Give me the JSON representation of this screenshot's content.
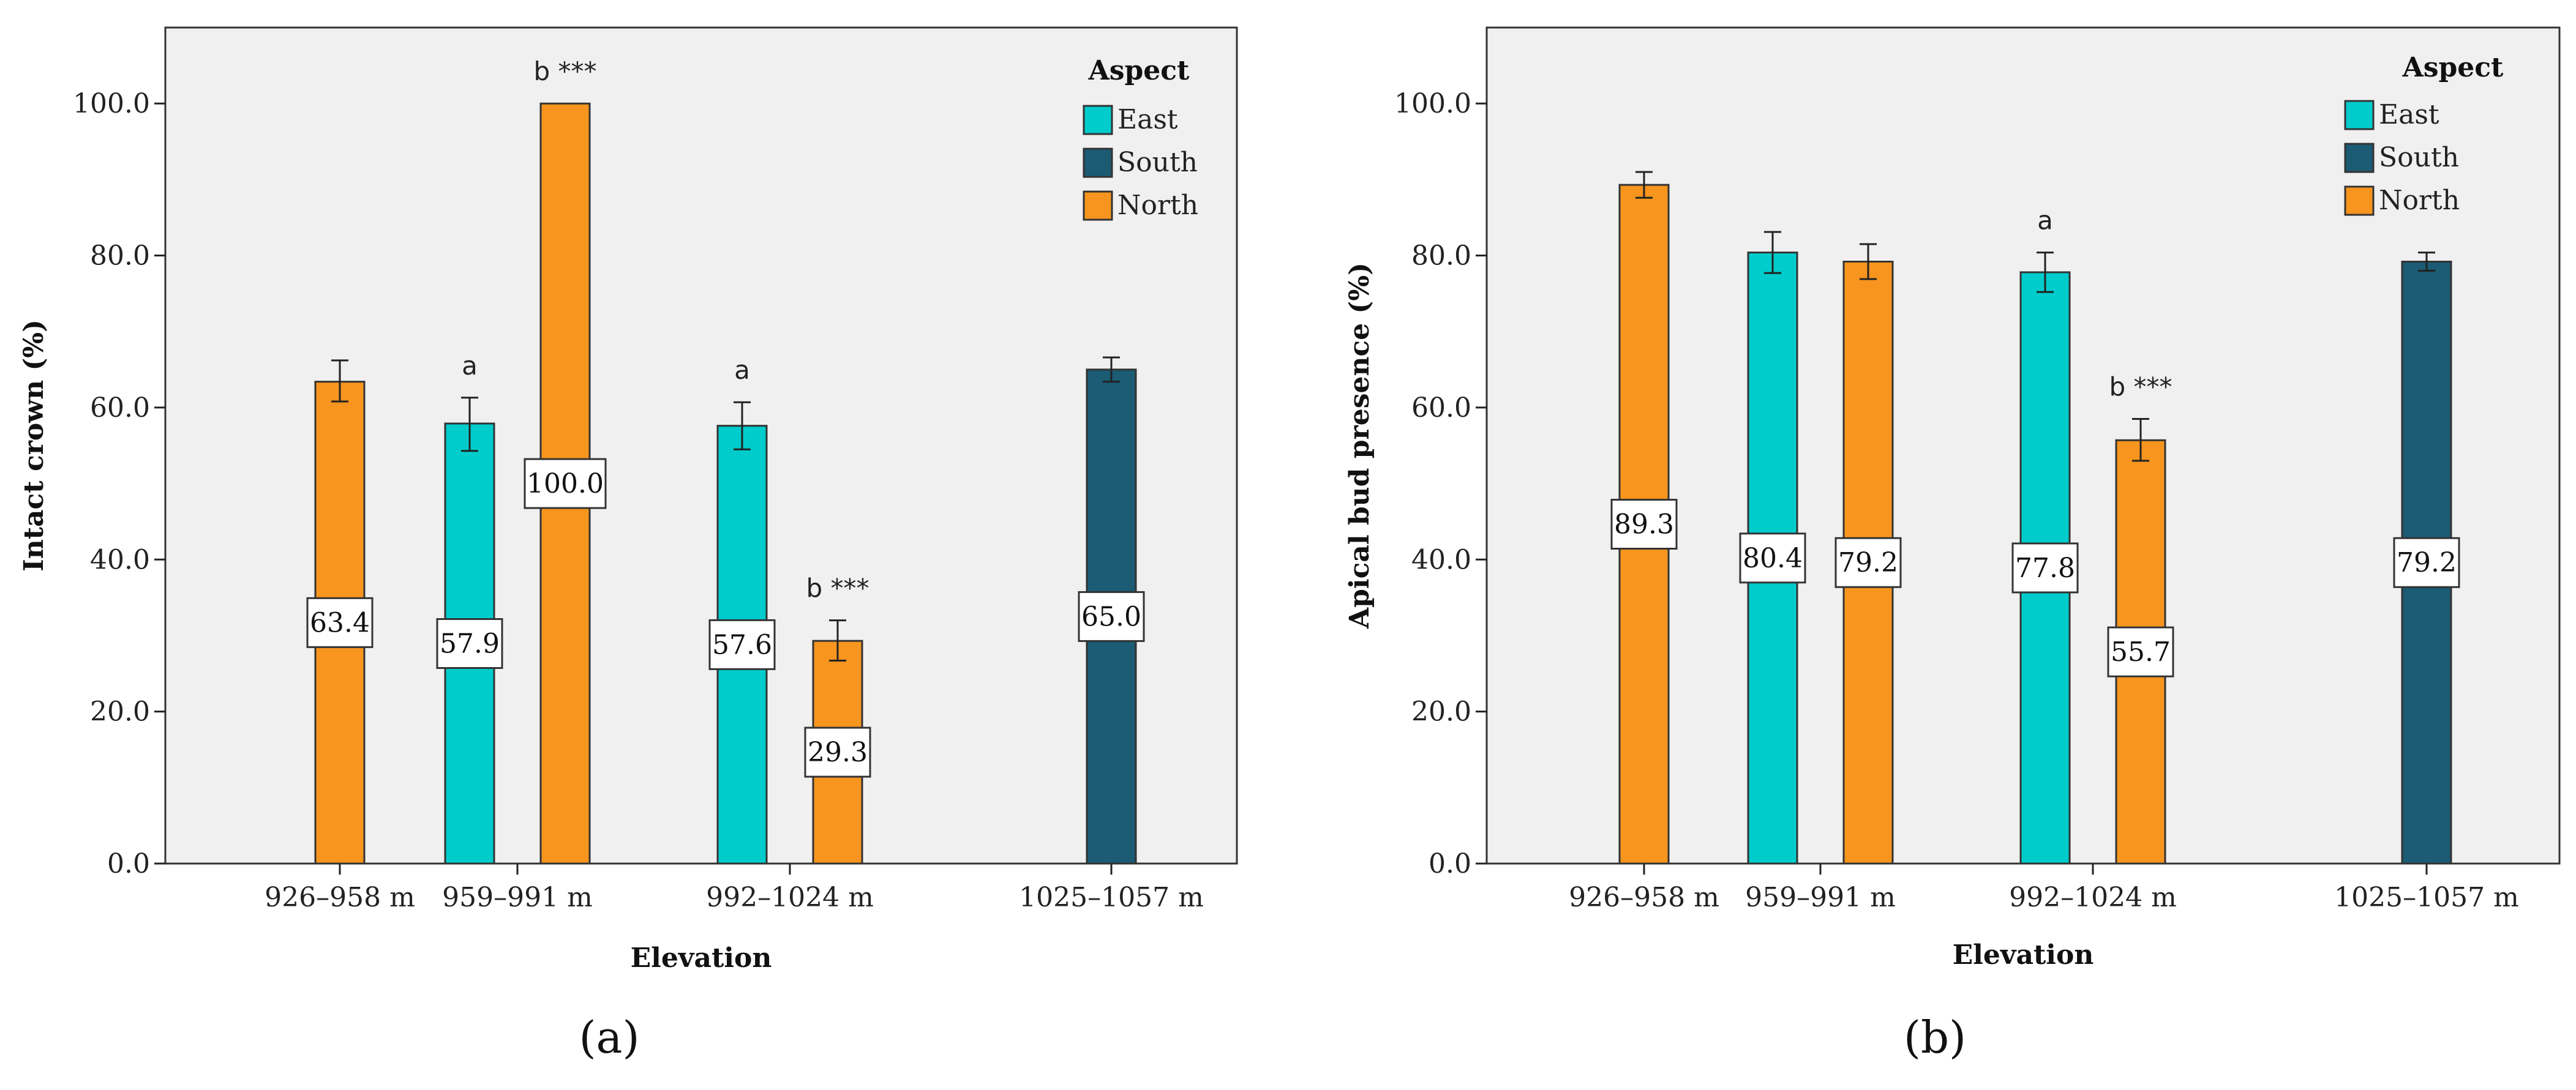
{
  "colors": {
    "East": "#00cccc",
    "South": "#1b5b73",
    "North": "#f7951e",
    "background": "#f0f0f0"
  },
  "chart_data": [
    {
      "type": "bar",
      "panel_label": "(a)",
      "xlabel": "Elevation",
      "ylabel": "Intact crown (%)",
      "ylim": [
        0,
        110
      ],
      "yticks": [
        "0.0",
        "20.0",
        "40.0",
        "60.0",
        "80.0",
        "100.0"
      ],
      "ytick_values": [
        0,
        20,
        40,
        60,
        80,
        100
      ],
      "categories": [
        "926–958 m",
        "959–991 m",
        "992–1024 m",
        "1025–1057 m"
      ],
      "legend": {
        "title": "Aspect",
        "entries": [
          "East",
          "South",
          "North"
        ],
        "position": "top-right"
      },
      "bars": [
        {
          "category": 0,
          "aspect": "North",
          "value": 63.4,
          "label": "63.4",
          "err_low": 60.8,
          "err_high": 66.2,
          "annotation": ""
        },
        {
          "category": 1,
          "aspect": "East",
          "value": 57.9,
          "label": "57.9",
          "err_low": 54.3,
          "err_high": 61.3,
          "annotation": "a"
        },
        {
          "category": 1,
          "aspect": "North",
          "value": 100.0,
          "label": "100.0",
          "err_low": 100.0,
          "err_high": 100.0,
          "annotation": "b ***"
        },
        {
          "category": 2,
          "aspect": "East",
          "value": 57.6,
          "label": "57.6",
          "err_low": 54.5,
          "err_high": 60.7,
          "annotation": "a"
        },
        {
          "category": 2,
          "aspect": "North",
          "value": 29.3,
          "label": "29.3",
          "err_low": 26.7,
          "err_high": 32.0,
          "annotation": "b ***"
        },
        {
          "category": 3,
          "aspect": "South",
          "value": 65.0,
          "label": "65.0",
          "err_low": 63.4,
          "err_high": 66.6,
          "annotation": ""
        }
      ]
    },
    {
      "type": "bar",
      "panel_label": "(b)",
      "xlabel": "Elevation",
      "ylabel": "Apical bud presence (%)",
      "ylim": [
        0,
        110
      ],
      "yticks": [
        "0.0",
        "20.0",
        "40.0",
        "60.0",
        "80.0",
        "100.0"
      ],
      "ytick_values": [
        0,
        20,
        40,
        60,
        80,
        100
      ],
      "categories": [
        "926–958 m",
        "959–991 m",
        "992–1024 m",
        "1025–1057 m"
      ],
      "legend": {
        "title": "Aspect",
        "entries": [
          "East",
          "South",
          "North"
        ],
        "position": "top-right"
      },
      "bars": [
        {
          "category": 0,
          "aspect": "North",
          "value": 89.3,
          "label": "89.3",
          "err_low": 87.6,
          "err_high": 91.0,
          "annotation": ""
        },
        {
          "category": 1,
          "aspect": "East",
          "value": 80.4,
          "label": "80.4",
          "err_low": 77.7,
          "err_high": 83.1,
          "annotation": ""
        },
        {
          "category": 1,
          "aspect": "North",
          "value": 79.2,
          "label": "79.2",
          "err_low": 76.9,
          "err_high": 81.5,
          "annotation": ""
        },
        {
          "category": 2,
          "aspect": "East",
          "value": 77.8,
          "label": "77.8",
          "err_low": 75.2,
          "err_high": 80.4,
          "annotation": "a"
        },
        {
          "category": 2,
          "aspect": "North",
          "value": 55.7,
          "label": "55.7",
          "err_low": 53.0,
          "err_high": 58.5,
          "annotation": "b ***"
        },
        {
          "category": 3,
          "aspect": "South",
          "value": 79.2,
          "label": "79.2",
          "err_low": 78.0,
          "err_high": 80.4,
          "annotation": ""
        }
      ]
    }
  ]
}
